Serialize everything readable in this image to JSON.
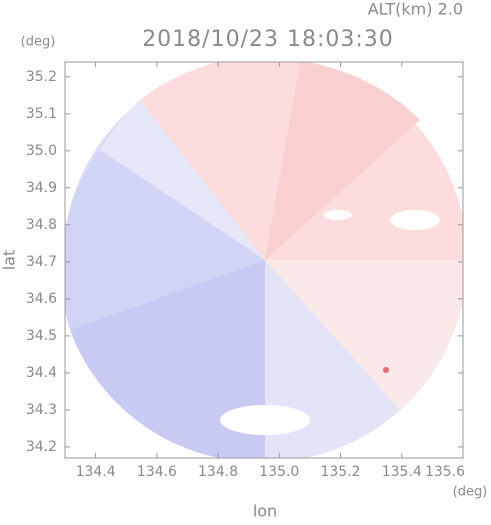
{
  "chart_data": {
    "type": "radar-map",
    "title": "2018/10/23 18:03:30",
    "subtitle": "ALT(km) 2.0",
    "x_label": "lon",
    "y_label": "lat",
    "x_unit": "(deg)",
    "y_unit": "(deg)",
    "xlim": [
      134.3,
      135.6
    ],
    "ylim": [
      34.17,
      35.24
    ],
    "xticks": [
      134.4,
      134.6,
      134.8,
      {
        "value": 135,
        "label": "135.0"
      },
      135.2,
      135.4,
      135.6
    ],
    "yticks": [
      34.2,
      34.3,
      34.4,
      34.5,
      34.6,
      34.7,
      34.8,
      34.9,
      {
        "value": 35,
        "label": "35.0"
      },
      35.1,
      35.2
    ]
  }
}
